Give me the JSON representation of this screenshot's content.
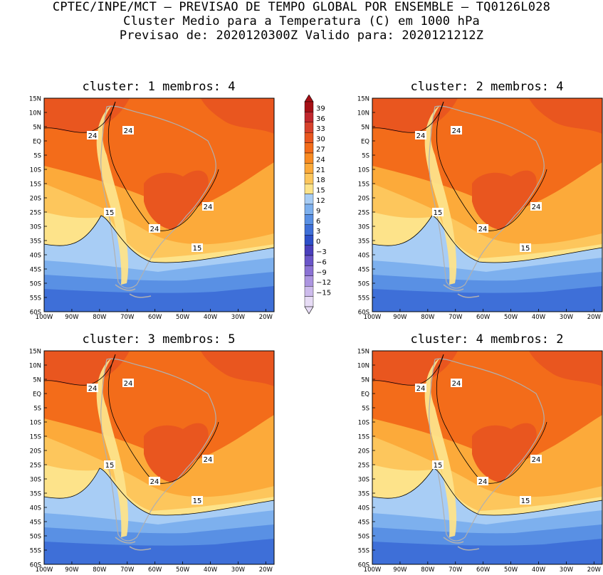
{
  "header": {
    "line1": "CPTEC/INPE/MCT – PREVISAO DE TEMPO GLOBAL POR ENSEMBLE – TQ0126L028",
    "line2": "Cluster Medio para a Temperatura (C) em 1000 hPa",
    "line3": "Previsao de: 2020120300Z   Valido para: 2020121212Z"
  },
  "axes": {
    "lat_labels": [
      "15N",
      "10N",
      "5N",
      "EQ",
      "5S",
      "10S",
      "15S",
      "20S",
      "25S",
      "30S",
      "35S",
      "40S",
      "45S",
      "50S",
      "55S",
      "60S"
    ],
    "lon_labels": [
      "100W",
      "90W",
      "80W",
      "70W",
      "60W",
      "50W",
      "40W",
      "30W",
      "20W"
    ]
  },
  "colorbar": {
    "labels": [
      "39",
      "36",
      "33",
      "30",
      "27",
      "24",
      "21",
      "18",
      "15",
      "12",
      "9",
      "6",
      "3",
      "0",
      "−3",
      "−6",
      "−9",
      "−12",
      "−15"
    ],
    "colors": [
      "#a50f15",
      "#c0272d",
      "#d7412c",
      "#e9561f",
      "#f36c1a",
      "#f98b22",
      "#fcaa3a",
      "#fdc65c",
      "#fde38a",
      "#a8cdf5",
      "#7db0ee",
      "#5990e4",
      "#3e6fd8",
      "#2e4fc9",
      "#4a3fbc",
      "#6a55c8",
      "#8b72d4",
      "#ac95e0",
      "#cdbbec",
      "#e7dcf5"
    ]
  },
  "panels": [
    {
      "title": "cluster: 1   membros: 4",
      "contour_labels": [
        "24",
        "24",
        "24",
        "24",
        "15",
        "15"
      ]
    },
    {
      "title": "cluster: 2   membros: 4",
      "contour_labels": [
        "24",
        "24",
        "24",
        "24",
        "15",
        "15"
      ]
    },
    {
      "title": "cluster: 3   membros: 5",
      "contour_labels": [
        "24",
        "24",
        "24",
        "24",
        "15",
        "15"
      ]
    },
    {
      "title": "cluster: 4   membros: 2",
      "contour_labels": [
        "24",
        "24",
        "24",
        "24",
        "15",
        "15"
      ]
    }
  ]
}
